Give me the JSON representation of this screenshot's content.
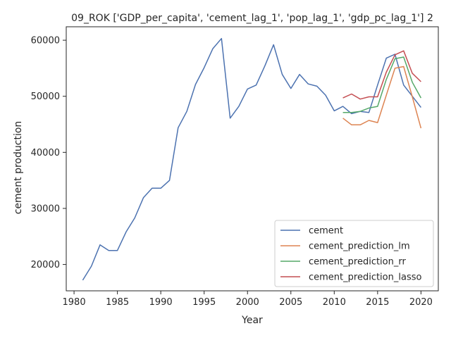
{
  "chart_data": {
    "type": "line",
    "title": "09_ROK ['GDP_per_capita', 'cement_lag_1', 'pop_lag_1', 'gdp_pc_lag_1'] 2",
    "xlabel": "Year",
    "ylabel": "cement production",
    "xlim": [
      1979.1,
      2022
    ],
    "ylim": [
      15300,
      62400
    ],
    "xticks": [
      1980,
      1985,
      1990,
      1995,
      2000,
      2005,
      2010,
      2015,
      2020
    ],
    "yticks": [
      20000,
      30000,
      40000,
      50000,
      60000
    ],
    "grid": false,
    "legend_position": "bottom-right",
    "series": [
      {
        "name": "cement",
        "color": "#4c72b0",
        "x": [
          1981,
          1982,
          1983,
          1984,
          1985,
          1986,
          1987,
          1988,
          1989,
          1990,
          1991,
          1992,
          1993,
          1994,
          1995,
          1996,
          1997,
          1998,
          1999,
          2000,
          2001,
          2002,
          2003,
          2004,
          2005,
          2006,
          2007,
          2008,
          2009,
          2010,
          2011,
          2012,
          2013,
          2014,
          2015,
          2016,
          2017,
          2018,
          2019,
          2020
        ],
        "y": [
          17200,
          19700,
          23500,
          22500,
          22500,
          25800,
          28300,
          31900,
          33600,
          33600,
          35000,
          44400,
          47300,
          52100,
          55100,
          58500,
          60300,
          46100,
          48200,
          51300,
          52000,
          55400,
          59200,
          53900,
          51400,
          53900,
          52200,
          51800,
          50200,
          47400,
          48200,
          46900,
          47300,
          47100,
          52000,
          56800,
          57500,
          52000,
          50000,
          48000
        ]
      },
      {
        "name": "cement_prediction_lm",
        "color": "#dd8452",
        "x": [
          2011,
          2012,
          2013,
          2014,
          2015,
          2016,
          2017,
          2018,
          2019,
          2020
        ],
        "y": [
          46100,
          44900,
          44900,
          45700,
          45300,
          50200,
          55000,
          55300,
          49900,
          44300
        ]
      },
      {
        "name": "cement_prediction_rr",
        "color": "#55a868",
        "x": [
          2011,
          2012,
          2013,
          2014,
          2015,
          2016,
          2017,
          2018,
          2019,
          2020
        ],
        "y": [
          47100,
          47100,
          47300,
          47900,
          48200,
          53000,
          56700,
          57000,
          52500,
          49700
        ]
      },
      {
        "name": "cement_prediction_lasso",
        "color": "#c44e52",
        "x": [
          2011,
          2012,
          2013,
          2014,
          2015,
          2016,
          2017,
          2018,
          2019,
          2020
        ],
        "y": [
          49700,
          50400,
          49500,
          49900,
          49900,
          54300,
          57400,
          58100,
          54100,
          52600
        ]
      }
    ]
  }
}
